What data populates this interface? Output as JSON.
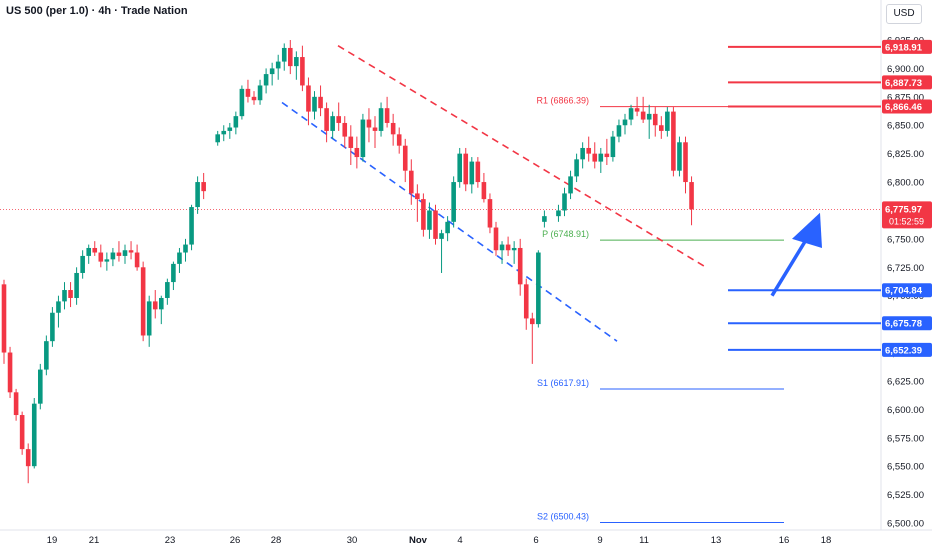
{
  "header": {
    "title": "US 500 (per 1.0) · 4h · Trade Nation",
    "currency": "USD"
  },
  "colors": {
    "up": "#089981",
    "down": "#f23645",
    "resistance": "#f23645",
    "support": "#2962ff",
    "pivot": "#4caf50",
    "arrow": "#2962ff"
  },
  "chart_data": {
    "type": "candlestick",
    "ylim": [
      6500,
      6935
    ],
    "x_ticks": [
      "19",
      "21",
      "23",
      "26",
      "28",
      "30",
      "Nov",
      "4",
      "6",
      "9",
      "11",
      "13",
      "16",
      "18"
    ],
    "y_ticks": [
      "6,500.00",
      "6,525.00",
      "6,550.00",
      "6,575.00",
      "6,600.00",
      "6,625.00",
      "6,650.00",
      "6,675.00",
      "6,700.00",
      "6,725.00",
      "6,750.00",
      "6,775.00",
      "6,800.00",
      "6,825.00",
      "6,850.00",
      "6,875.00",
      "6,900.00",
      "6,925.00"
    ],
    "candles": [
      [
        6710,
        6714,
        6640,
        6650
      ],
      [
        6650,
        6655,
        6610,
        6615
      ],
      [
        6615,
        6618,
        6590,
        6595
      ],
      [
        6595,
        6598,
        6560,
        6565
      ],
      [
        6565,
        6570,
        6535,
        6550
      ],
      [
        6550,
        6610,
        6548,
        6605
      ],
      [
        6605,
        6640,
        6600,
        6635
      ],
      [
        6635,
        6665,
        6630,
        6660
      ],
      [
        6660,
        6690,
        6655,
        6685
      ],
      [
        6685,
        6700,
        6672,
        6695
      ],
      [
        6695,
        6712,
        6688,
        6705
      ],
      [
        6705,
        6712,
        6690,
        6698
      ],
      [
        6698,
        6725,
        6692,
        6720
      ],
      [
        6720,
        6740,
        6715,
        6735
      ],
      [
        6735,
        6745,
        6728,
        6742
      ],
      [
        6742,
        6748,
        6735,
        6738
      ],
      [
        6738,
        6745,
        6725,
        6730
      ],
      [
        6730,
        6738,
        6722,
        6732
      ],
      [
        6732,
        6742,
        6726,
        6738
      ],
      [
        6738,
        6748,
        6730,
        6735
      ],
      [
        6735,
        6745,
        6728,
        6740
      ],
      [
        6740,
        6748,
        6732,
        6738
      ],
      [
        6738,
        6745,
        6722,
        6725
      ],
      [
        6725,
        6730,
        6660,
        6665
      ],
      [
        6665,
        6700,
        6655,
        6695
      ],
      [
        6695,
        6705,
        6680,
        6688
      ],
      [
        6688,
        6700,
        6675,
        6698
      ],
      [
        6698,
        6715,
        6692,
        6712
      ],
      [
        6712,
        6730,
        6705,
        6728
      ],
      [
        6728,
        6742,
        6720,
        6738
      ],
      [
        6738,
        6750,
        6730,
        6745
      ],
      [
        6745,
        6780,
        6740,
        6778
      ],
      [
        6778,
        6805,
        6772,
        6800
      ],
      [
        6800,
        6808,
        6785,
        6792
      ],
      [
        6835,
        6845,
        6832,
        6842
      ],
      [
        6842,
        6850,
        6836,
        6845
      ],
      [
        6845,
        6852,
        6838,
        6848
      ],
      [
        6848,
        6862,
        6842,
        6858
      ],
      [
        6858,
        6885,
        6855,
        6882
      ],
      [
        6882,
        6890,
        6870,
        6875
      ],
      [
        6875,
        6880,
        6868,
        6872
      ],
      [
        6872,
        6890,
        6868,
        6885
      ],
      [
        6885,
        6900,
        6878,
        6895
      ],
      [
        6895,
        6905,
        6885,
        6900
      ],
      [
        6900,
        6912,
        6890,
        6906
      ],
      [
        6906,
        6922,
        6898,
        6918
      ],
      [
        6918,
        6925,
        6895,
        6902
      ],
      [
        6902,
        6915,
        6890,
        6910
      ],
      [
        6910,
        6920,
        6880,
        6885
      ],
      [
        6885,
        6892,
        6850,
        6862
      ],
      [
        6862,
        6880,
        6855,
        6875
      ],
      [
        6875,
        6885,
        6858,
        6865
      ],
      [
        6865,
        6870,
        6835,
        6845
      ],
      [
        6845,
        6862,
        6838,
        6858
      ],
      [
        6858,
        6870,
        6845,
        6852
      ],
      [
        6852,
        6858,
        6830,
        6840
      ],
      [
        6840,
        6850,
        6815,
        6830
      ],
      [
        6830,
        6840,
        6812,
        6822
      ],
      [
        6822,
        6860,
        6818,
        6855
      ],
      [
        6855,
        6865,
        6835,
        6848
      ],
      [
        6848,
        6858,
        6830,
        6845
      ],
      [
        6845,
        6870,
        6840,
        6865
      ],
      [
        6865,
        6875,
        6848,
        6852
      ],
      [
        6852,
        6860,
        6832,
        6842
      ],
      [
        6842,
        6848,
        6825,
        6832
      ],
      [
        6832,
        6838,
        6800,
        6810
      ],
      [
        6810,
        6820,
        6780,
        6790
      ],
      [
        6790,
        6798,
        6765,
        6785
      ],
      [
        6785,
        6790,
        6752,
        6758
      ],
      [
        6758,
        6782,
        6750,
        6775
      ],
      [
        6775,
        6780,
        6745,
        6750
      ],
      [
        6750,
        6758,
        6720,
        6755
      ],
      [
        6755,
        6770,
        6748,
        6765
      ],
      [
        6765,
        6805,
        6760,
        6800
      ],
      [
        6800,
        6830,
        6795,
        6825
      ],
      [
        6825,
        6830,
        6792,
        6798
      ],
      [
        6798,
        6822,
        6790,
        6818
      ],
      [
        6818,
        6822,
        6795,
        6800
      ],
      [
        6800,
        6808,
        6782,
        6785
      ],
      [
        6785,
        6790,
        6755,
        6760
      ],
      [
        6760,
        6765,
        6735,
        6740
      ],
      [
        6740,
        6748,
        6728,
        6745
      ],
      [
        6745,
        6752,
        6735,
        6740
      ],
      [
        6740,
        6748,
        6728,
        6742
      ],
      [
        6742,
        6750,
        6700,
        6710
      ],
      [
        6710,
        6715,
        6670,
        6680
      ],
      [
        6680,
        6685,
        6640,
        6675
      ],
      [
        6675,
        6740,
        6672,
        6738
      ],
      [
        6765,
        6775,
        6760,
        6770
      ],
      [
        6770,
        6780,
        6765,
        6775
      ],
      [
        6775,
        6795,
        6770,
        6790
      ],
      [
        6790,
        6810,
        6785,
        6805
      ],
      [
        6805,
        6825,
        6800,
        6820
      ],
      [
        6820,
        6835,
        6812,
        6830
      ],
      [
        6830,
        6840,
        6818,
        6825
      ],
      [
        6825,
        6835,
        6812,
        6818
      ],
      [
        6818,
        6830,
        6808,
        6825
      ],
      [
        6825,
        6838,
        6815,
        6822
      ],
      [
        6822,
        6845,
        6818,
        6840
      ],
      [
        6840,
        6855,
        6835,
        6850
      ],
      [
        6850,
        6860,
        6842,
        6855
      ],
      [
        6855,
        6868,
        6850,
        6865
      ],
      [
        6865,
        6875,
        6858,
        6862
      ],
      [
        6862,
        6875,
        6852,
        6855
      ],
      [
        6855,
        6868,
        6838,
        6860
      ],
      [
        6860,
        6866,
        6840,
        6850
      ],
      [
        6850,
        6858,
        6838,
        6845
      ],
      [
        6845,
        6866,
        6840,
        6862
      ],
      [
        6862,
        6866,
        6805,
        6810
      ],
      [
        6810,
        6840,
        6805,
        6835
      ],
      [
        6835,
        6840,
        6790,
        6800
      ],
      [
        6800,
        6805,
        6762,
        6776
      ]
    ],
    "levels": [
      {
        "value": 6918.91,
        "label": "6,918.91",
        "color": "resistance"
      },
      {
        "value": 6887.73,
        "label": "6,887.73",
        "color": "resistance"
      },
      {
        "value": 6866.46,
        "label": "6,866.46",
        "color": "resistance"
      },
      {
        "value": 6704.84,
        "label": "6,704.84",
        "color": "support"
      },
      {
        "value": 6675.78,
        "label": "6,675.78",
        "color": "support"
      },
      {
        "value": 6652.39,
        "label": "6,652.39",
        "color": "support"
      }
    ],
    "pivots": [
      {
        "label": "R1 (6866.39)",
        "value": 6866.39,
        "color": "resistance"
      },
      {
        "label": "P (6748.91)",
        "value": 6748.91,
        "color": "pivot"
      },
      {
        "label": "S1 (6617.91)",
        "value": 6617.91,
        "color": "support"
      },
      {
        "label": "S2 (6500.43)",
        "value": 6500.43,
        "color": "support"
      }
    ],
    "current": {
      "value": 6775.97,
      "label": "6,775.97",
      "countdown": "01:52:59"
    }
  }
}
